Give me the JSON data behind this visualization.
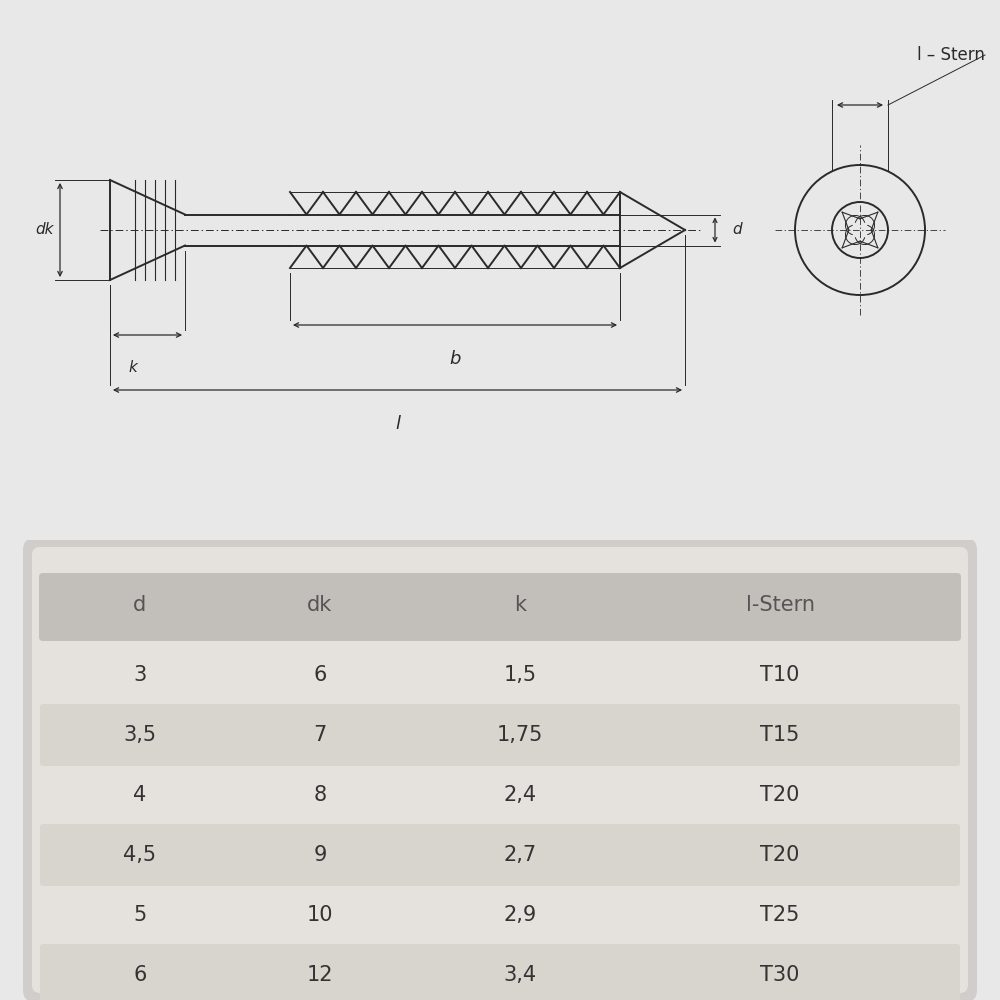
{
  "bg_color": "#e8e8e8",
  "drawing_bg": "#ffffff",
  "line_color": "#2a2a2a",
  "table_bg": "#d8d8d8",
  "table_inner_bg": "#e8e5e0",
  "table_header_bg": "#c0bcb8",
  "table_row_alt_bg": "#dbd7d0",
  "table_text": "#444444",
  "table_headers": [
    "d",
    "dk",
    "k",
    "l-Stern"
  ],
  "table_rows": [
    [
      "3",
      "6",
      "1,5",
      "T10"
    ],
    [
      "3,5",
      "7",
      "1,75",
      "T15"
    ],
    [
      "4",
      "8",
      "2,4",
      "T20"
    ],
    [
      "4,5",
      "9",
      "2,7",
      "T20"
    ],
    [
      "5",
      "10",
      "2,9",
      "T25"
    ],
    [
      "6",
      "12",
      "3,4",
      "T30"
    ]
  ],
  "label_dk": "dk",
  "label_k": "k",
  "label_b": "b",
  "label_l": "l",
  "label_d": "d",
  "label_stern": "l – Stern"
}
